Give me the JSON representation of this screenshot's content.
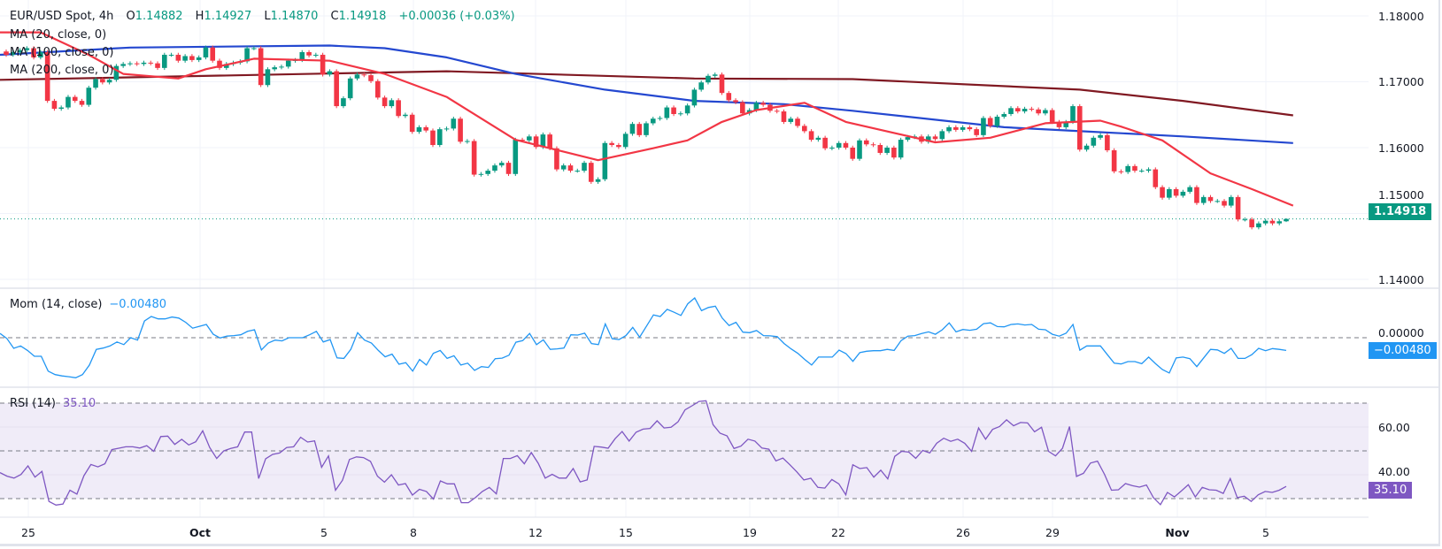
{
  "header": {
    "symbol": "EUR/USD Spot, 4h",
    "o_label": "O",
    "o": "1.14882",
    "h_label": "H",
    "h": "1.14927",
    "l_label": "L",
    "l": "1.14870",
    "c_label": "C",
    "c": "1.14918",
    "change": "+0.00036 (+0.03%)"
  },
  "indicators": {
    "ma20": "MA (20, close, 0)",
    "ma100": "MA (100, close, 0)",
    "ma200": "MA (200, close, 0)",
    "mom_label": "Mom (14, close)",
    "mom_value": "−0.00480",
    "rsi_label": "RSI (14)",
    "rsi_value": "35.10"
  },
  "price_axis": [
    "1.18000",
    "1.17000",
    "1.16000",
    "1.15000",
    "1.14000"
  ],
  "mom_axis": [
    "0.00000"
  ],
  "rsi_axis": [
    "60.00",
    "40.00"
  ],
  "tags": {
    "price": "1.14918",
    "mom": "−0.00480",
    "rsi": "35.10"
  },
  "time_axis": [
    {
      "label": "25",
      "bold": false
    },
    {
      "label": "Oct",
      "bold": true
    },
    {
      "label": "5",
      "bold": false
    },
    {
      "label": "8",
      "bold": false
    },
    {
      "label": "12",
      "bold": false
    },
    {
      "label": "15",
      "bold": false
    },
    {
      "label": "19",
      "bold": false
    },
    {
      "label": "22",
      "bold": false
    },
    {
      "label": "26",
      "bold": false
    },
    {
      "label": "29",
      "bold": false
    },
    {
      "label": "Nov",
      "bold": true
    },
    {
      "label": "5",
      "bold": false
    }
  ],
  "colors": {
    "up": "#089981",
    "down": "#f23645",
    "ma20": "#f23645",
    "ma100": "#2448d0",
    "ma200": "#801922",
    "mom": "#2196f3",
    "rsi": "#7e57c2",
    "rsi_band": "#f0ecf8"
  },
  "chart_data": [
    {
      "type": "candlestick",
      "title": "EUR/USD Spot, 4h",
      "ylim": [
        1.14,
        1.18
      ],
      "yticks": [
        1.18,
        1.17,
        1.16,
        1.15,
        1.14
      ],
      "grid": true,
      "first_open": 1.1746,
      "closes": [
        1.1741,
        1.1745,
        1.1748,
        1.1751,
        1.1737,
        1.1745,
        1.1671,
        1.1659,
        1.1661,
        1.1677,
        1.1671,
        1.1665,
        1.1691,
        1.1704,
        1.1699,
        1.1703,
        1.1724,
        1.1727,
        1.1728,
        1.1727,
        1.1729,
        1.1728,
        1.1721,
        1.1741,
        1.1741,
        1.1732,
        1.1739,
        1.1733,
        1.1737,
        1.1752,
        1.1732,
        1.1721,
        1.1727,
        1.1729,
        1.1731,
        1.1751,
        1.1751,
        1.1695,
        1.1719,
        1.1722,
        1.1723,
        1.1732,
        1.1733,
        1.1745,
        1.174,
        1.1741,
        1.1711,
        1.1716,
        1.1663,
        1.1675,
        1.1705,
        1.1711,
        1.171,
        1.1701,
        1.1676,
        1.1663,
        1.1672,
        1.1648,
        1.165,
        1.1624,
        1.1631,
        1.1626,
        1.1604,
        1.1628,
        1.1629,
        1.1644,
        1.1609,
        1.161,
        1.1559,
        1.156,
        1.1565,
        1.1573,
        1.1577,
        1.156,
        1.1612,
        1.1611,
        1.1617,
        1.1601,
        1.162,
        1.1599,
        1.1567,
        1.1573,
        1.1565,
        1.1565,
        1.1577,
        1.1548,
        1.1552,
        1.1607,
        1.1604,
        1.1601,
        1.1621,
        1.1636,
        1.1619,
        1.1637,
        1.1644,
        1.1645,
        1.1661,
        1.1651,
        1.1652,
        1.1664,
        1.1688,
        1.1699,
        1.1709,
        1.1711,
        1.1683,
        1.1672,
        1.1669,
        1.1652,
        1.1657,
        1.1668,
        1.1665,
        1.1656,
        1.1655,
        1.1639,
        1.1644,
        1.1633,
        1.1625,
        1.1612,
        1.1615,
        1.1599,
        1.16,
        1.1607,
        1.16,
        1.1583,
        1.1611,
        1.1605,
        1.1604,
        1.1592,
        1.16,
        1.1585,
        1.1612,
        1.1616,
        1.1617,
        1.1609,
        1.1617,
        1.1613,
        1.1625,
        1.1631,
        1.1627,
        1.1631,
        1.1628,
        1.1619,
        1.1645,
        1.1633,
        1.1647,
        1.1651,
        1.166,
        1.1655,
        1.1659,
        1.1658,
        1.1652,
        1.1657,
        1.1639,
        1.1631,
        1.1639,
        1.1663,
        1.1597,
        1.1603,
        1.1615,
        1.1619,
        1.1596,
        1.1564,
        1.1563,
        1.1572,
        1.1565,
        1.1565,
        1.1567,
        1.154,
        1.1524,
        1.1537,
        1.1527,
        1.1533,
        1.154,
        1.1516,
        1.1525,
        1.1519,
        1.1519,
        1.1512,
        1.1525,
        1.1491,
        1.1491,
        1.1479,
        1.1485,
        1.1489,
        1.1485,
        1.14882,
        1.14918
      ],
      "last_candle": {
        "open": 1.14882,
        "high": 1.14927,
        "low": 1.1487,
        "close": 1.14918
      },
      "series": [
        {
          "name": "MA (20, close, 0)",
          "points": [
            [
              0,
              1.1775
            ],
            [
              5,
              1.1775
            ],
            [
              12,
              1.1741
            ],
            [
              17,
              1.1712
            ],
            [
              25,
              1.1705
            ],
            [
              29,
              1.1719
            ],
            [
              36,
              1.1735
            ],
            [
              47,
              1.1732
            ],
            [
              55,
              1.1712
            ],
            [
              64,
              1.1677
            ],
            [
              74,
              1.1612
            ],
            [
              86,
              1.1581
            ],
            [
              94,
              1.1599
            ],
            [
              99,
              1.1611
            ],
            [
              104,
              1.1639
            ],
            [
              109,
              1.1657
            ],
            [
              116,
              1.1668
            ],
            [
              122,
              1.1639
            ],
            [
              135,
              1.1608
            ],
            [
              143,
              1.1615
            ],
            [
              151,
              1.1637
            ],
            [
              159,
              1.1641
            ],
            [
              162,
              1.1632
            ],
            [
              168,
              1.1611
            ],
            [
              175,
              1.1561
            ],
            [
              181,
              1.1537
            ],
            [
              187,
              1.1512
            ]
          ]
        },
        {
          "name": "MA (100, close, 0)",
          "points": [
            [
              0,
              1.1741
            ],
            [
              18,
              1.1752
            ],
            [
              47,
              1.1755
            ],
            [
              55,
              1.1751
            ],
            [
              64,
              1.1737
            ],
            [
              74,
              1.1712
            ],
            [
              87,
              1.1688
            ],
            [
              100,
              1.1671
            ],
            [
              113,
              1.1666
            ],
            [
              123,
              1.1656
            ],
            [
              145,
              1.1631
            ],
            [
              158,
              1.1624
            ],
            [
              171,
              1.1617
            ],
            [
              187,
              1.1607
            ]
          ]
        },
        {
          "name": "MA (200, close, 0)",
          "points": [
            [
              0,
              1.1703
            ],
            [
              64,
              1.1716
            ],
            [
              100,
              1.1705
            ],
            [
              123,
              1.1704
            ],
            [
              156,
              1.1688
            ],
            [
              171,
              1.1671
            ],
            [
              187,
              1.1649
            ]
          ]
        }
      ]
    },
    {
      "type": "line",
      "title": "Mom (14, close)",
      "zero_line": 0,
      "last_value": -0.0048,
      "values": [
        0.0016,
        -0.0003,
        -0.004,
        -0.0031,
        -0.0048,
        -0.007,
        -0.007,
        -0.0126,
        -0.0139,
        -0.0144,
        -0.0147,
        -0.0151,
        -0.0139,
        -0.0103,
        -0.0044,
        -0.0039,
        -0.0031,
        -0.0016,
        -0.0026,
        0.0,
        -0.0009,
        0.0063,
        0.008,
        0.0071,
        0.0071,
        0.0078,
        0.0074,
        0.0058,
        0.0036,
        0.0043,
        0.005,
        0.0013,
        -0.0001,
        0.0006,
        0.0008,
        0.0011,
        0.0024,
        0.003,
        -0.0046,
        -0.002,
        -0.0009,
        -0.0012,
        0.0,
        0.0,
        0.0,
        0.0011,
        0.0024,
        -0.0016,
        -0.0007,
        -0.0076,
        -0.0078,
        -0.0044,
        0.0019,
        -0.0009,
        -0.002,
        -0.0048,
        -0.0072,
        -0.0062,
        -0.01,
        -0.0094,
        -0.0126,
        -0.0082,
        -0.0103,
        -0.0059,
        -0.0048,
        -0.0078,
        -0.0068,
        -0.0103,
        -0.0096,
        -0.0123,
        -0.0109,
        -0.0112,
        -0.0079,
        -0.0077,
        -0.0066,
        -0.0017,
        -0.0011,
        0.0016,
        -0.0026,
        -0.0008,
        -0.0044,
        -0.0042,
        -0.0039,
        0.0011,
        0.001,
        0.0017,
        -0.0022,
        -0.0026,
        0.0052,
        -0.0004,
        -0.0007,
        0.0008,
        0.0039,
        0.0002,
        0.0044,
        0.0086,
        0.008,
        0.0107,
        0.0096,
        0.0084,
        0.0128,
        0.015,
        0.0102,
        0.0114,
        0.0119,
        0.0074,
        0.0046,
        0.0058,
        0.0021,
        0.0019,
        0.0027,
        0.0008,
        0.0007,
        0.0004,
        -0.0022,
        -0.0042,
        -0.0059,
        -0.0082,
        -0.0103,
        -0.0073,
        -0.0073,
        -0.0073,
        -0.0047,
        -0.006,
        -0.0089,
        -0.0056,
        -0.0051,
        -0.0049,
        -0.0049,
        -0.0044,
        -0.0048,
        -0.0011,
        0.0006,
        0.0008,
        0.0016,
        0.0022,
        0.0013,
        0.003,
        0.0056,
        0.0022,
        0.0031,
        0.0028,
        0.0032,
        0.0053,
        0.0056,
        0.0042,
        0.0041,
        0.005,
        0.0052,
        0.0048,
        0.005,
        0.0032,
        0.003,
        0.0013,
        0.0006,
        0.0017,
        0.005,
        -0.0047,
        -0.0031,
        -0.0031,
        -0.0031,
        -0.0064,
        -0.0096,
        -0.0099,
        -0.009,
        -0.009,
        -0.0098,
        -0.0073,
        -0.0098,
        -0.012,
        -0.0133,
        -0.0076,
        -0.0073,
        -0.0079,
        -0.0109,
        -0.0076,
        -0.0044,
        -0.0046,
        -0.0059,
        -0.004,
        -0.0078,
        -0.0078,
        -0.0064,
        -0.004,
        -0.0049,
        -0.0041,
        -0.0044,
        -0.0048
      ]
    },
    {
      "type": "line",
      "title": "RSI (14)",
      "levels": [
        70,
        50,
        30
      ],
      "yticks": [
        60,
        40
      ],
      "last_value": 35.1,
      "values": [
        40.9,
        39.4,
        38.6,
        40.1,
        43.7,
        39.0,
        41.4,
        28.8,
        27.3,
        27.7,
        33.5,
        31.9,
        39.6,
        44.3,
        43.3,
        44.6,
        50.5,
        51.1,
        51.7,
        51.7,
        51.2,
        52.2,
        49.8,
        56.0,
        56.2,
        52.7,
        54.8,
        52.5,
        53.8,
        58.4,
        51.4,
        46.8,
        50.0,
        51.0,
        51.7,
        57.9,
        57.9,
        38.4,
        46.7,
        48.5,
        49.1,
        51.4,
        51.7,
        55.7,
        53.7,
        54.2,
        43.1,
        47.9,
        33.5,
        37.7,
        46.4,
        47.5,
        47.2,
        45.6,
        39.4,
        36.9,
        40.0,
        35.7,
        36.3,
        31.5,
        33.9,
        33.0,
        29.8,
        37.4,
        36.2,
        36.2,
        28.3,
        28.3,
        30.4,
        33.0,
        34.7,
        32.0,
        46.8,
        46.8,
        48.0,
        44.6,
        49.3,
        44.8,
        38.6,
        40.2,
        38.6,
        38.6,
        42.6,
        37.0,
        37.8,
        51.9,
        51.6,
        51.1,
        55.1,
        58.1,
        54.1,
        57.8,
        59.1,
        59.4,
        62.6,
        59.6,
        59.9,
        62.2,
        67.2,
        68.9,
        70.7,
        71.0,
        61.0,
        57.4,
        56.3,
        51.0,
        52.0,
        54.9,
        54.1,
        51.2,
        50.7,
        45.8,
        47.0,
        44.2,
        41.2,
        37.8,
        38.5,
        34.7,
        34.4,
        38.0,
        36.2,
        31.6,
        44.2,
        42.6,
        43.0,
        39.0,
        41.9,
        38.3,
        47.7,
        49.8,
        49.5,
        46.9,
        50.2,
        49.1,
        53.2,
        55.3,
        54.0,
        54.9,
        53.2,
        49.8,
        59.6,
        54.9,
        59.0,
        60.2,
        63.0,
        60.5,
        61.9,
        61.7,
        58.0,
        59.9,
        49.8,
        47.9,
        51.1,
        60.2,
        39.3,
        40.6,
        44.9,
        45.7,
        40.2,
        33.5,
        33.7,
        36.3,
        35.4,
        34.8,
        35.7,
        30.4,
        27.5,
        32.6,
        30.7,
        33.2,
        35.8,
        30.7,
        34.7,
        33.7,
        33.5,
        32.2,
        38.4,
        30.4,
        31.0,
        28.8,
        31.6,
        33.0,
        32.6,
        33.5,
        35.1
      ]
    }
  ]
}
